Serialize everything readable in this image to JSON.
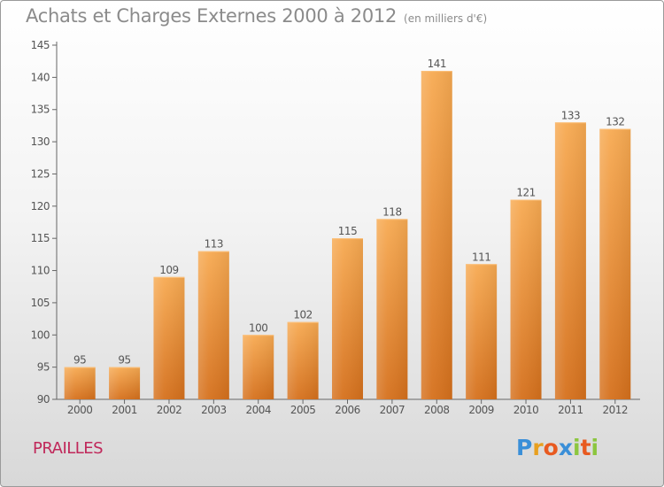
{
  "header": {
    "title": "Achats et Charges Externes 2000 à 2012",
    "subtitle": "(en milliers d'€)"
  },
  "footer": {
    "town": "PRAILLES",
    "brand_letters": [
      "P",
      "r",
      "o",
      "x",
      "i",
      "t",
      "i"
    ],
    "brand_colors": [
      "#3a8fd8",
      "#e8a020",
      "#e85a20",
      "#3a8fd8",
      "#8cc63f",
      "#e85a20",
      "#8cc63f"
    ]
  },
  "colors": {
    "bar_light": "#f7a94f",
    "bar_dark": "#d8741f",
    "axis": "#666666",
    "label": "#555555"
  },
  "chart_data": {
    "type": "bar",
    "title": "Achats et Charges Externes 2000 à 2012",
    "subtitle": "(en milliers d'€)",
    "categories": [
      "2000",
      "2001",
      "2002",
      "2003",
      "2004",
      "2005",
      "2006",
      "2007",
      "2008",
      "2009",
      "2010",
      "2011",
      "2012"
    ],
    "values": [
      95,
      95,
      109,
      113,
      100,
      102,
      115,
      118,
      141,
      111,
      121,
      133,
      132
    ],
    "data_labels": [
      "95",
      "95",
      "109",
      "113",
      "100",
      "102",
      "115",
      "118",
      "141",
      "111",
      "121",
      "133",
      "132"
    ],
    "ylim": [
      90,
      145
    ],
    "yticks": [
      "90",
      "95",
      "100",
      "105",
      "110",
      "115",
      "120",
      "125",
      "130",
      "135",
      "140",
      "145"
    ],
    "grid": false,
    "legend": "none"
  }
}
